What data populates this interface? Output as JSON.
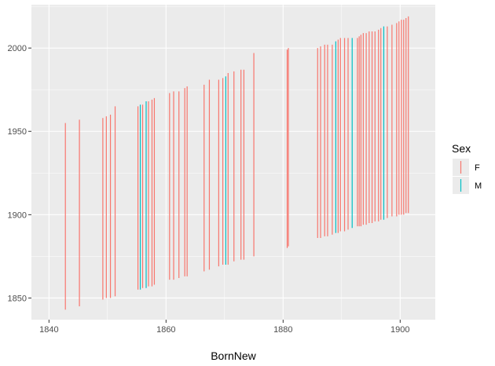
{
  "chart_data": {
    "type": "line",
    "xlabel": "BornNew",
    "ylabel": "",
    "xlim": [
      1837,
      1906
    ],
    "ylim": [
      1837,
      2026
    ],
    "x_ticks": [
      1840,
      1860,
      1880,
      1900
    ],
    "y_ticks": [
      1850,
      1900,
      1950,
      2000
    ],
    "grid": true,
    "legend": {
      "title": "Sex",
      "position": "right",
      "entries": [
        {
          "label": "F",
          "color": "#F8766D"
        },
        {
          "label": "M",
          "color": "#00BFC4"
        }
      ]
    },
    "segments": [
      {
        "sex": "F",
        "x": 1842.8,
        "y_start": 1843,
        "y_end": 1955
      },
      {
        "sex": "F",
        "x": 1845.2,
        "y_start": 1845,
        "y_end": 1957
      },
      {
        "sex": "F",
        "x": 1849.2,
        "y_start": 1849,
        "y_end": 1958
      },
      {
        "sex": "F",
        "x": 1849.8,
        "y_start": 1850,
        "y_end": 1959
      },
      {
        "sex": "F",
        "x": 1850.5,
        "y_start": 1850,
        "y_end": 1960
      },
      {
        "sex": "F",
        "x": 1851.3,
        "y_start": 1851,
        "y_end": 1965
      },
      {
        "sex": "F",
        "x": 1855.2,
        "y_start": 1855,
        "y_end": 1965
      },
      {
        "sex": "M",
        "x": 1855.6,
        "y_start": 1855,
        "y_end": 1966
      },
      {
        "sex": "F",
        "x": 1856.0,
        "y_start": 1856,
        "y_end": 1966
      },
      {
        "sex": "M",
        "x": 1856.6,
        "y_start": 1856,
        "y_end": 1968
      },
      {
        "sex": "F",
        "x": 1857.0,
        "y_start": 1857,
        "y_end": 1968
      },
      {
        "sex": "F",
        "x": 1857.6,
        "y_start": 1857,
        "y_end": 1969
      },
      {
        "sex": "F",
        "x": 1858.0,
        "y_start": 1858,
        "y_end": 1970
      },
      {
        "sex": "F",
        "x": 1860.6,
        "y_start": 1861,
        "y_end": 1973
      },
      {
        "sex": "F",
        "x": 1861.3,
        "y_start": 1861,
        "y_end": 1974
      },
      {
        "sex": "F",
        "x": 1862.2,
        "y_start": 1862,
        "y_end": 1974
      },
      {
        "sex": "F",
        "x": 1863.2,
        "y_start": 1863,
        "y_end": 1976
      },
      {
        "sex": "F",
        "x": 1863.6,
        "y_start": 1863,
        "y_end": 1977
      },
      {
        "sex": "F",
        "x": 1866.5,
        "y_start": 1866,
        "y_end": 1978
      },
      {
        "sex": "F",
        "x": 1867.4,
        "y_start": 1867,
        "y_end": 1981
      },
      {
        "sex": "F",
        "x": 1869.0,
        "y_start": 1869,
        "y_end": 1981
      },
      {
        "sex": "F",
        "x": 1869.7,
        "y_start": 1870,
        "y_end": 1982
      },
      {
        "sex": "M",
        "x": 1870.2,
        "y_start": 1870,
        "y_end": 1983
      },
      {
        "sex": "F",
        "x": 1870.6,
        "y_start": 1870,
        "y_end": 1985
      },
      {
        "sex": "F",
        "x": 1871.6,
        "y_start": 1872,
        "y_end": 1986
      },
      {
        "sex": "F",
        "x": 1872.8,
        "y_start": 1873,
        "y_end": 1987
      },
      {
        "sex": "F",
        "x": 1873.3,
        "y_start": 1873,
        "y_end": 1987
      },
      {
        "sex": "F",
        "x": 1875.0,
        "y_start": 1875,
        "y_end": 1997
      },
      {
        "sex": "F",
        "x": 1880.7,
        "y_start": 1880,
        "y_end": 1999
      },
      {
        "sex": "F",
        "x": 1880.9,
        "y_start": 1881,
        "y_end": 2000
      },
      {
        "sex": "F",
        "x": 1885.9,
        "y_start": 1886,
        "y_end": 2000
      },
      {
        "sex": "F",
        "x": 1886.4,
        "y_start": 1886,
        "y_end": 2001
      },
      {
        "sex": "F",
        "x": 1887.1,
        "y_start": 1887,
        "y_end": 2002
      },
      {
        "sex": "F",
        "x": 1887.6,
        "y_start": 1887,
        "y_end": 2002
      },
      {
        "sex": "F",
        "x": 1888.4,
        "y_start": 1888,
        "y_end": 2002
      },
      {
        "sex": "M",
        "x": 1889.0,
        "y_start": 1889,
        "y_end": 2004
      },
      {
        "sex": "F",
        "x": 1889.4,
        "y_start": 1889,
        "y_end": 2005
      },
      {
        "sex": "F",
        "x": 1889.8,
        "y_start": 1890,
        "y_end": 2006
      },
      {
        "sex": "F",
        "x": 1890.5,
        "y_start": 1890,
        "y_end": 2006
      },
      {
        "sex": "F",
        "x": 1891.1,
        "y_start": 1891,
        "y_end": 2006
      },
      {
        "sex": "M",
        "x": 1891.8,
        "y_start": 1892,
        "y_end": 2006
      },
      {
        "sex": "F",
        "x": 1892.7,
        "y_start": 1893,
        "y_end": 2006
      },
      {
        "sex": "F",
        "x": 1893.0,
        "y_start": 1893,
        "y_end": 2007
      },
      {
        "sex": "F",
        "x": 1893.3,
        "y_start": 1893,
        "y_end": 2008
      },
      {
        "sex": "F",
        "x": 1893.7,
        "y_start": 1894,
        "y_end": 2009
      },
      {
        "sex": "F",
        "x": 1894.2,
        "y_start": 1894,
        "y_end": 2009
      },
      {
        "sex": "F",
        "x": 1894.7,
        "y_start": 1895,
        "y_end": 2010
      },
      {
        "sex": "F",
        "x": 1895.2,
        "y_start": 1895,
        "y_end": 2010
      },
      {
        "sex": "F",
        "x": 1895.7,
        "y_start": 1896,
        "y_end": 2010
      },
      {
        "sex": "F",
        "x": 1896.3,
        "y_start": 1896,
        "y_end": 2011
      },
      {
        "sex": "F",
        "x": 1896.7,
        "y_start": 1897,
        "y_end": 2012
      },
      {
        "sex": "M",
        "x": 1897.2,
        "y_start": 1897,
        "y_end": 2013
      },
      {
        "sex": "F",
        "x": 1897.8,
        "y_start": 1898,
        "y_end": 2013
      },
      {
        "sex": "F",
        "x": 1898.6,
        "y_start": 1899,
        "y_end": 2014
      },
      {
        "sex": "F",
        "x": 1899.4,
        "y_start": 1899,
        "y_end": 2015
      },
      {
        "sex": "F",
        "x": 1899.8,
        "y_start": 1900,
        "y_end": 2016
      },
      {
        "sex": "F",
        "x": 1900.2,
        "y_start": 1900,
        "y_end": 2017
      },
      {
        "sex": "F",
        "x": 1900.6,
        "y_start": 1900,
        "y_end": 2017
      },
      {
        "sex": "F",
        "x": 1901.0,
        "y_start": 1901,
        "y_end": 2018
      },
      {
        "sex": "F",
        "x": 1901.4,
        "y_start": 1901,
        "y_end": 2019
      }
    ]
  }
}
